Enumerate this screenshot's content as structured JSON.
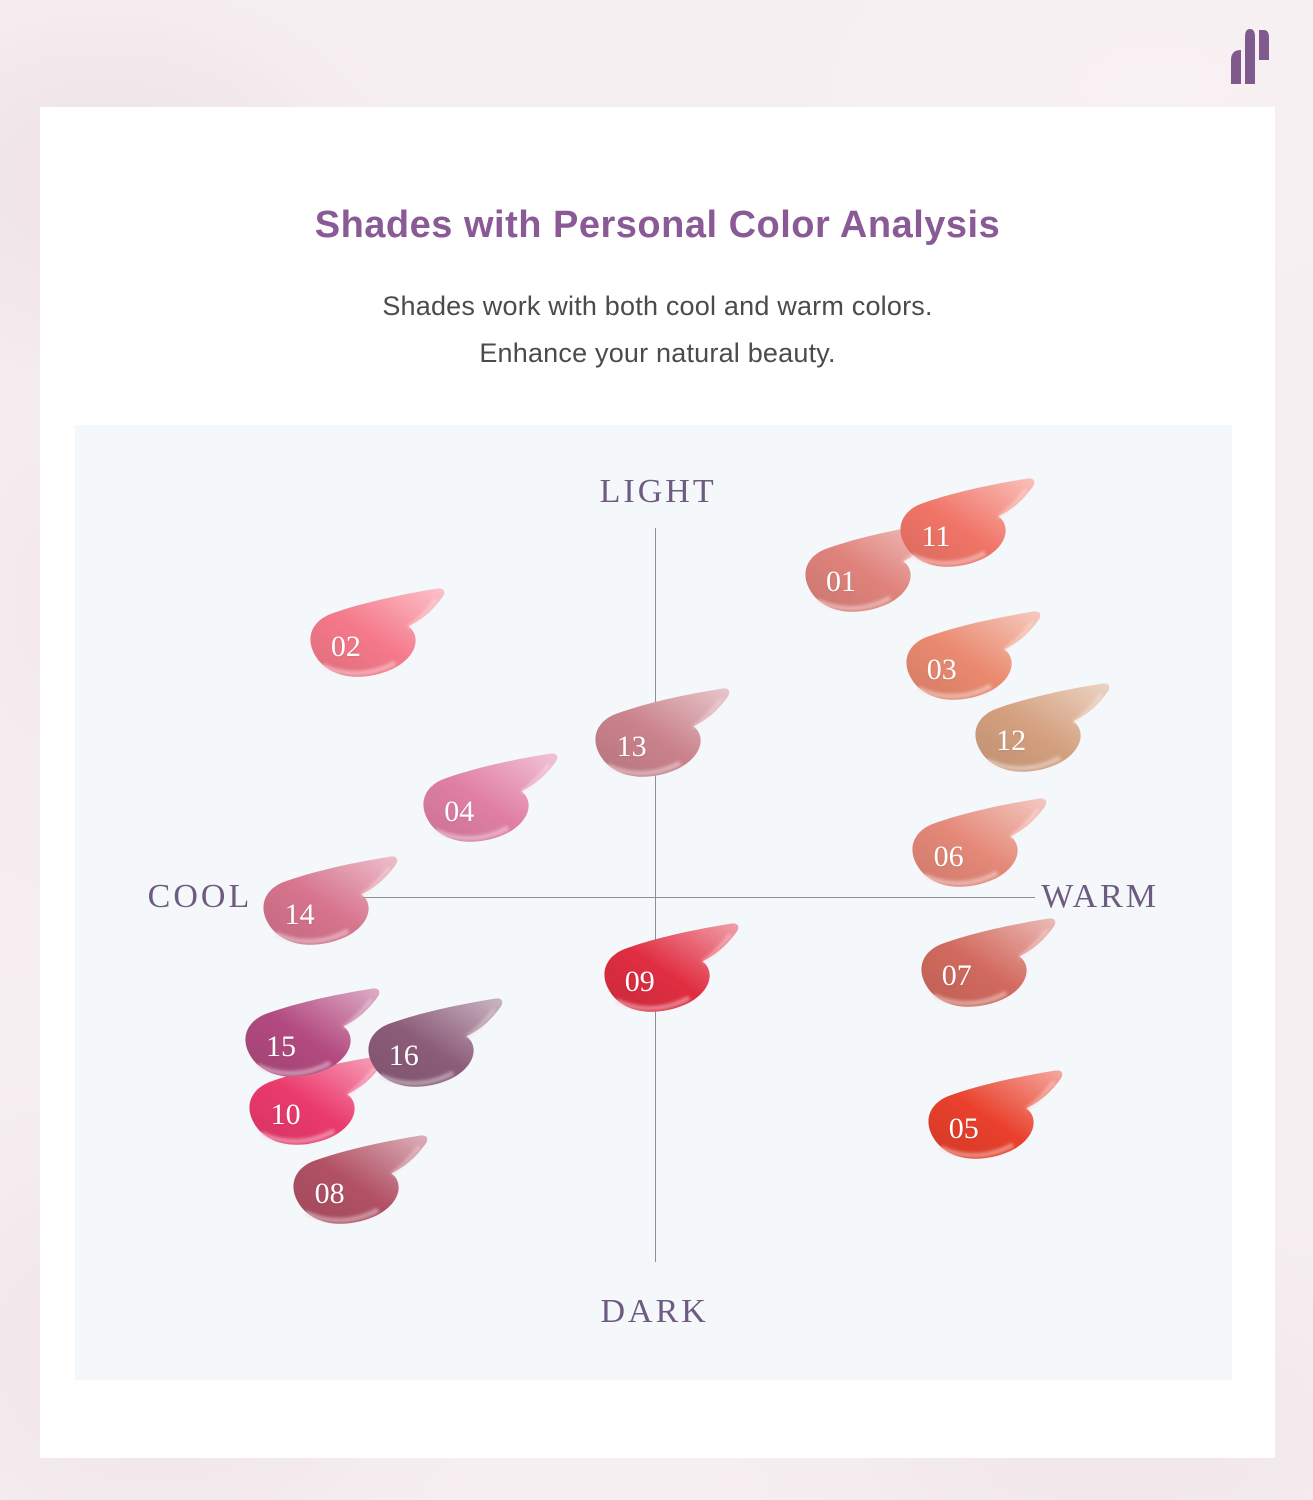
{
  "page": {
    "title": "Shades with Personal Color Analysis",
    "subtitle_line1": "Shades work with both cool and warm colors.",
    "subtitle_line2": "Enhance your natural beauty.",
    "colors": {
      "title_text": "#8a5a97",
      "subtitle_text": "#4b4b4e",
      "axis_label": "#6e5b80",
      "axis_line": "#8e8e99",
      "panel_background": "#f4f8fb",
      "card_background": "#ffffff",
      "page_background": "#f6eff1",
      "logo": "#7e5a8d",
      "swatch_number_text": "#ffffff"
    }
  },
  "chart_data": {
    "type": "scatter",
    "title": "Shades with Personal Color Analysis",
    "description": "16 lip shade swatches positioned on a personal-color quadrant map",
    "axes": {
      "top": "LIGHT",
      "bottom": "DARK",
      "left": "COOL",
      "right": "WARM"
    },
    "legend_position": "none",
    "grid": false,
    "points": [
      {
        "label": "01",
        "color": "#e0827c",
        "x_pct": 68.7,
        "y_pct": 15.2
      },
      {
        "label": "02",
        "color": "#f5798a",
        "x_pct": 25.9,
        "y_pct": 22.0
      },
      {
        "label": "03",
        "color": "#ea8a70",
        "x_pct": 77.4,
        "y_pct": 24.4
      },
      {
        "label": "04",
        "color": "#e07fa2",
        "x_pct": 35.7,
        "y_pct": 39.3
      },
      {
        "label": "05",
        "color": "#e9402c",
        "x_pct": 79.3,
        "y_pct": 72.5
      },
      {
        "label": "06",
        "color": "#e58878",
        "x_pct": 78.0,
        "y_pct": 44.0
      },
      {
        "label": "07",
        "color": "#d26a5e",
        "x_pct": 78.7,
        "y_pct": 56.5
      },
      {
        "label": "08",
        "color": "#b25165",
        "x_pct": 24.5,
        "y_pct": 79.3
      },
      {
        "label": "09",
        "color": "#e02e41",
        "x_pct": 51.3,
        "y_pct": 57.1
      },
      {
        "label": "10",
        "color": "#eb3a6d",
        "x_pct": 20.7,
        "y_pct": 71.0
      },
      {
        "label": "11",
        "color": "#f17568",
        "x_pct": 76.9,
        "y_pct": 10.5
      },
      {
        "label": "12",
        "color": "#d4a07f",
        "x_pct": 83.4,
        "y_pct": 31.9
      },
      {
        "label": "13",
        "color": "#ca828c",
        "x_pct": 50.6,
        "y_pct": 32.5
      },
      {
        "label": "14",
        "color": "#d7748e",
        "x_pct": 21.9,
        "y_pct": 50.1
      },
      {
        "label": "15",
        "color": "#b34a80",
        "x_pct": 20.3,
        "y_pct": 63.9
      },
      {
        "label": "16",
        "color": "#8c5c79",
        "x_pct": 30.9,
        "y_pct": 64.9
      }
    ],
    "label_positions": {
      "light": {
        "x_pct": 50.4,
        "y_pct": 7.0
      },
      "dark": {
        "x_pct": 50.1,
        "y_pct": 92.9
      },
      "cool": {
        "x_pct": 10.8,
        "y_pct": 49.4
      },
      "warm": {
        "x_pct": 88.6,
        "y_pct": 49.4
      }
    }
  }
}
